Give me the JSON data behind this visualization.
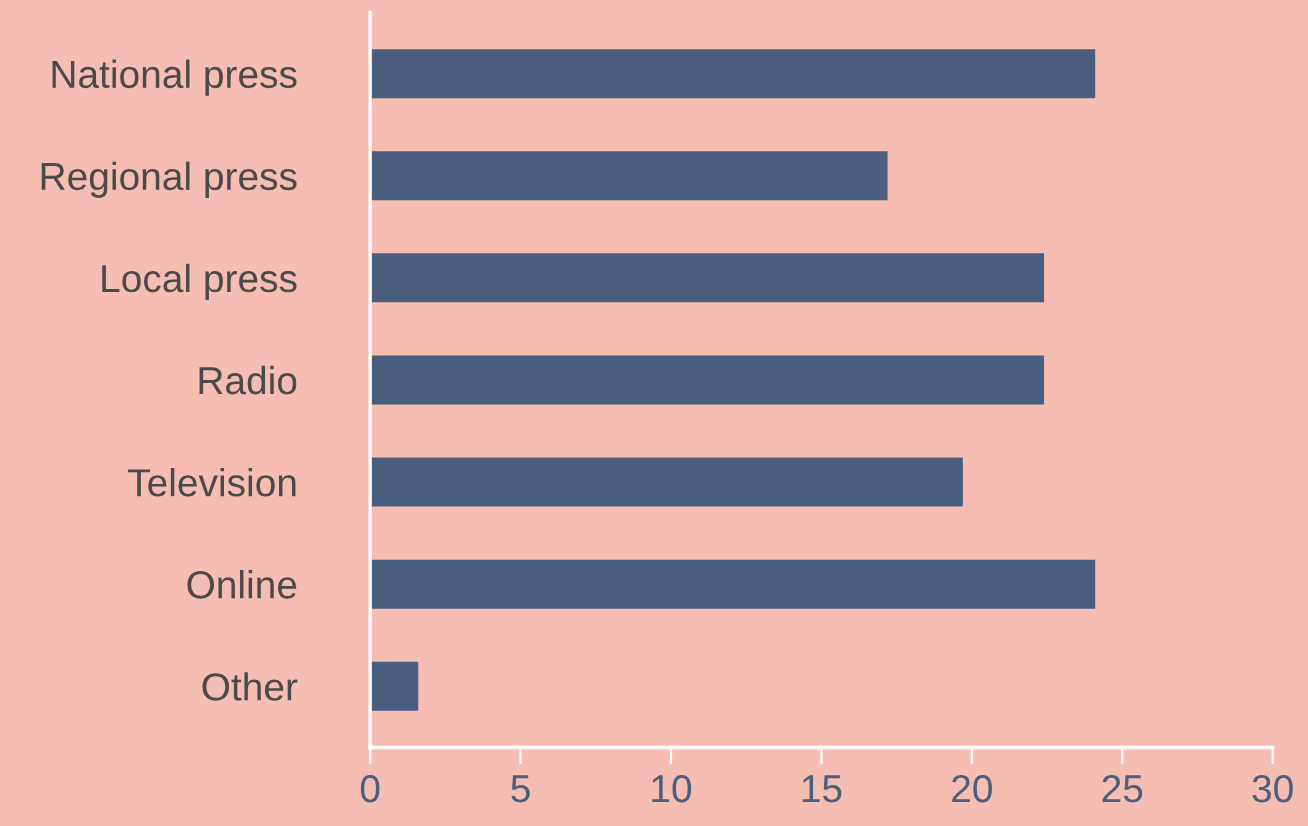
{
  "chart_data": {
    "type": "bar",
    "orientation": "horizontal",
    "categories": [
      "National press",
      "Regional press",
      "Local press",
      "Radio",
      "Television",
      "Online",
      "Other"
    ],
    "values": [
      24.1,
      17.2,
      22.4,
      22.4,
      19.7,
      24.1,
      1.6
    ],
    "color": "#4a5e80",
    "xlim": [
      0,
      30
    ],
    "xticks": [
      0,
      5,
      10,
      15,
      20,
      25,
      30
    ],
    "grid": false,
    "legend": false
  }
}
